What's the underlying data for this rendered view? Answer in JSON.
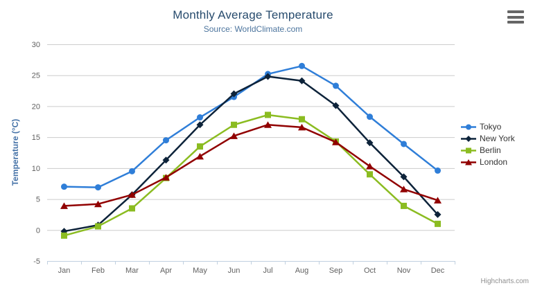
{
  "chart": {
    "credits": "Highcharts.com",
    "context_menu_icon": "hamburger-menu-icon"
  },
  "chart_data": {
    "type": "line",
    "title": "Monthly Average Temperature",
    "subtitle": "Source: WorldClimate.com",
    "categories": [
      "Jan",
      "Feb",
      "Mar",
      "Apr",
      "May",
      "Jun",
      "Jul",
      "Aug",
      "Sep",
      "Oct",
      "Nov",
      "Dec"
    ],
    "xlabel": "",
    "ylabel": "Temperature (°C)",
    "ylim": [
      -5,
      30
    ],
    "yticks": [
      -5,
      0,
      5,
      10,
      15,
      20,
      25,
      30
    ],
    "grid": "horizontal",
    "legend_position": "right",
    "series": [
      {
        "name": "Tokyo",
        "color": "#2f7ed8",
        "marker": "circle",
        "values": [
          7.0,
          6.9,
          9.5,
          14.5,
          18.2,
          21.5,
          25.2,
          26.5,
          23.3,
          18.3,
          13.9,
          9.6
        ]
      },
      {
        "name": "New York",
        "color": "#0d233a",
        "marker": "diamond",
        "values": [
          -0.2,
          0.8,
          5.7,
          11.3,
          17.0,
          22.0,
          24.8,
          24.1,
          20.1,
          14.1,
          8.6,
          2.5
        ]
      },
      {
        "name": "Berlin",
        "color": "#8bbc21",
        "marker": "square",
        "values": [
          -0.9,
          0.6,
          3.5,
          8.4,
          13.5,
          17.0,
          18.6,
          17.9,
          14.3,
          9.0,
          3.9,
          1.0
        ]
      },
      {
        "name": "London",
        "color": "#910000",
        "marker": "triangle",
        "values": [
          3.9,
          4.2,
          5.7,
          8.5,
          11.9,
          15.2,
          17.0,
          16.6,
          14.2,
          10.3,
          6.6,
          4.8
        ]
      }
    ],
    "colors": {
      "grid_line": "#cccccc",
      "axis_line": "#c0d0e0",
      "tick_label": "#606060"
    }
  }
}
